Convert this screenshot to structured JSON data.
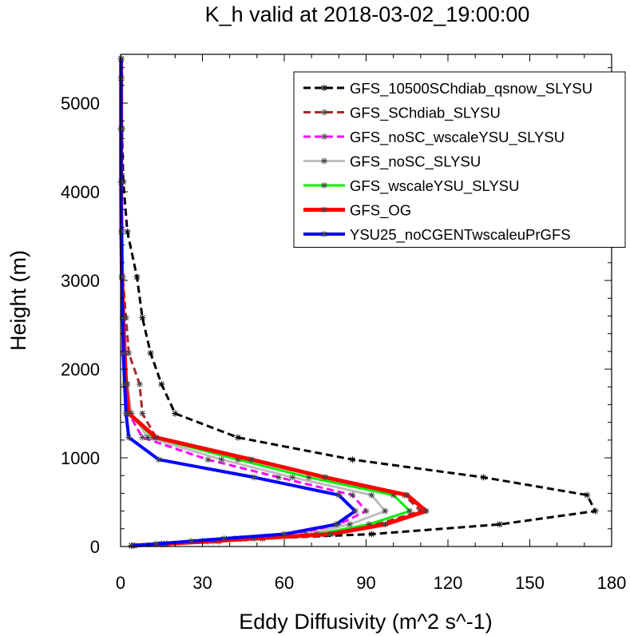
{
  "chart_data": {
    "type": "line",
    "title": "K_h valid at 2018-03-02_19:00:00",
    "xlabel": "Eddy Diffusivity (m^2 s^-1)",
    "ylabel": "Height (m)",
    "xlim": [
      0,
      180
    ],
    "ylim": [
      0,
      5550
    ],
    "xticks": [
      0,
      30,
      60,
      90,
      120,
      150,
      180
    ],
    "yticks": [
      0,
      1000,
      2000,
      3000,
      4000,
      5000
    ],
    "xtick_labels": [
      "0",
      "30",
      "60",
      "90",
      "120",
      "150",
      "180"
    ],
    "ytick_labels": [
      "0",
      "1000",
      "2000",
      "3000",
      "4000",
      "5000"
    ],
    "grid": false,
    "legend_position": "top-right",
    "heights": [
      10,
      30,
      60,
      90,
      140,
      250,
      400,
      580,
      780,
      980,
      1230,
      1500,
      1830,
      2180,
      2580,
      3040,
      3550,
      4110,
      4710,
      5280,
      5500
    ],
    "series": [
      {
        "name": "GFS_10500SChdiab_qsnow_SLYSU",
        "color": "#000000",
        "dash": "9,5",
        "width": 3,
        "values": [
          5,
          17,
          36,
          52,
          92,
          139,
          174,
          171,
          133,
          85,
          43,
          20,
          15,
          11,
          8,
          6,
          2.5,
          1,
          0.5,
          0.3,
          0.3
        ]
      },
      {
        "name": "GFS_SChdiab_SLYSU",
        "color": "#a52a2a",
        "dash": "9,5",
        "width": 3,
        "values": [
          4,
          15,
          32,
          46,
          74,
          94,
          110,
          104,
          75,
          47,
          13,
          8,
          7,
          3,
          2,
          0.8,
          0.5,
          0.3,
          0.2,
          0.2,
          0.2
        ]
      },
      {
        "name": "GFS_noSC_wscaleYSU_SLYSU",
        "color": "#ff00ff",
        "dash": "9,5",
        "width": 3,
        "values": [
          4,
          15,
          30,
          42,
          64,
          80,
          90,
          85,
          58,
          32,
          8,
          3,
          2,
          1.5,
          1,
          0.5,
          0.3,
          0.2,
          0.2,
          0.2,
          0.2
        ]
      },
      {
        "name": "GFS_noSC_SLYSU",
        "color": "#bdbdbd",
        "dash": "",
        "width": 3,
        "values": [
          4,
          15,
          31,
          44,
          68,
          84,
          97,
          92,
          63,
          37,
          10,
          4,
          2.5,
          1.8,
          1.2,
          0.6,
          0.3,
          0.2,
          0.2,
          0.2,
          0.2
        ]
      },
      {
        "name": "GFS_wscaleYSU_SLYSU",
        "color": "#00ee00",
        "dash": "",
        "width": 3,
        "values": [
          4,
          15,
          32,
          46,
          72,
          91,
          106,
          100,
          69,
          43,
          12,
          3,
          2,
          1.5,
          1,
          0.5,
          0.3,
          0.2,
          0.2,
          0.2,
          0.2
        ]
      },
      {
        "name": "GFS_OG",
        "color": "#ff0000",
        "dash": "",
        "width": 5,
        "values": [
          4,
          16,
          34,
          49,
          77,
          97,
          112,
          105,
          75,
          48,
          13,
          3,
          2,
          1.5,
          1,
          0.5,
          0.3,
          0.2,
          0.2,
          0.2,
          0.2
        ]
      },
      {
        "name": "YSU25_noCGENTwscaleuPrGFS",
        "color": "#0000ff",
        "dash": "",
        "width": 4,
        "values": [
          4,
          13,
          26,
          38,
          60,
          79,
          86,
          80,
          49,
          14,
          3,
          2,
          1.5,
          1,
          0.8,
          0.4,
          0.3,
          0.2,
          0.2,
          0.2,
          0.2
        ]
      }
    ]
  }
}
